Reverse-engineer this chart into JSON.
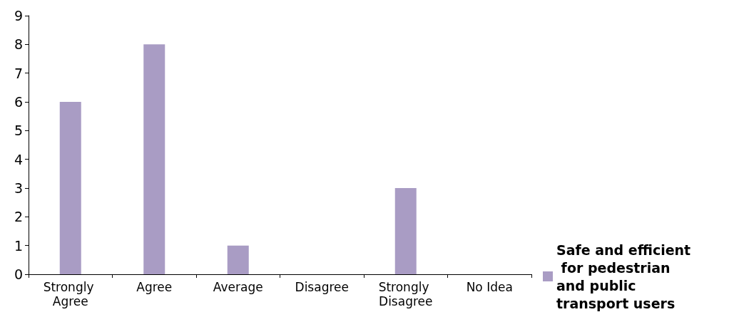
{
  "chart_data": {
    "type": "bar",
    "categories": [
      "Strongly Agree",
      "Agree",
      "Average",
      "Disagree",
      "Strongly Disagree",
      "No Idea"
    ],
    "series": [
      {
        "name": "Safe and efficient for pedestrian and public transport users",
        "color": "#a99cc4",
        "values": [
          6,
          8,
          1,
          0,
          3,
          0
        ]
      }
    ],
    "ylim": [
      0,
      9
    ],
    "yticks": [
      0,
      1,
      2,
      3,
      4,
      5,
      6,
      7,
      8,
      9
    ],
    "grid": false,
    "legend": "bottom right"
  }
}
